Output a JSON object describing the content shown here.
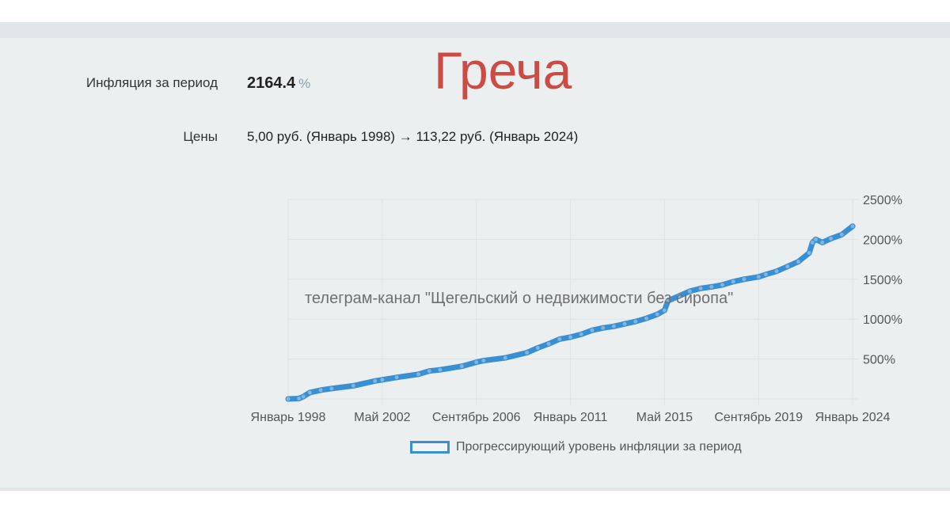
{
  "header": {
    "inflation_label": "Инфляция за период",
    "inflation_value": "2164.4",
    "inflation_unit": "%",
    "prices_label": "Цены",
    "prices_value": "5,00 руб. (Январь 1998) → 113,22 руб. (Январь 2024)",
    "title": "Греча"
  },
  "watermark": "телеграм-канал \"Щегельский о недвижимости без сиропа\"",
  "colors": {
    "series": "#3a8fd2",
    "title": "#cc4b45",
    "grid": "#dfe3e5"
  },
  "chart_data": {
    "type": "line",
    "grid": true,
    "ylim": [
      0,
      2500
    ],
    "y_ticks": [
      500,
      1000,
      1500,
      2000,
      2500
    ],
    "y_tick_labels": [
      "500%",
      "1000%",
      "1500%",
      "2000%",
      "2500%"
    ],
    "y_axis_position": "right",
    "x_ticks": [
      1998.0,
      2002.333,
      2006.667,
      2011.0,
      2015.333,
      2019.667,
      2024.0
    ],
    "x_tick_labels": [
      "Январь 1998",
      "Май 2002",
      "Сентябрь 2006",
      "Январь 2011",
      "Май 2015",
      "Сентябрь 2019",
      "Январь 2024"
    ],
    "legend_position": "bottom",
    "series": [
      {
        "name": "Прогрессирующий уровень инфляции за период",
        "points": [
          [
            1998.0,
            0
          ],
          [
            1998.5,
            5
          ],
          [
            1998.7,
            30
          ],
          [
            1999.0,
            80
          ],
          [
            1999.5,
            110
          ],
          [
            2000.0,
            130
          ],
          [
            2001.0,
            165
          ],
          [
            2002.0,
            225
          ],
          [
            2002.333,
            240
          ],
          [
            2003.0,
            270
          ],
          [
            2004.0,
            310
          ],
          [
            2004.5,
            350
          ],
          [
            2005.0,
            365
          ],
          [
            2006.0,
            410
          ],
          [
            2006.667,
            460
          ],
          [
            2007.0,
            480
          ],
          [
            2008.0,
            515
          ],
          [
            2009.0,
            580
          ],
          [
            2009.5,
            640
          ],
          [
            2010.0,
            690
          ],
          [
            2010.5,
            750
          ],
          [
            2011.0,
            775
          ],
          [
            2011.5,
            810
          ],
          [
            2012.0,
            860
          ],
          [
            2012.5,
            890
          ],
          [
            2013.0,
            910
          ],
          [
            2013.5,
            940
          ],
          [
            2014.0,
            970
          ],
          [
            2014.5,
            1010
          ],
          [
            2015.0,
            1060
          ],
          [
            2015.333,
            1110
          ],
          [
            2015.5,
            1230
          ],
          [
            2016.0,
            1290
          ],
          [
            2016.5,
            1350
          ],
          [
            2017.0,
            1385
          ],
          [
            2017.5,
            1405
          ],
          [
            2018.0,
            1430
          ],
          [
            2018.5,
            1470
          ],
          [
            2019.0,
            1500
          ],
          [
            2019.667,
            1530
          ],
          [
            2020.0,
            1560
          ],
          [
            2020.5,
            1600
          ],
          [
            2021.0,
            1660
          ],
          [
            2021.5,
            1720
          ],
          [
            2022.0,
            1830
          ],
          [
            2022.15,
            1960
          ],
          [
            2022.3,
            2000
          ],
          [
            2022.6,
            1960
          ],
          [
            2023.0,
            2010
          ],
          [
            2023.5,
            2060
          ],
          [
            2024.0,
            2164.4
          ]
        ]
      }
    ]
  }
}
